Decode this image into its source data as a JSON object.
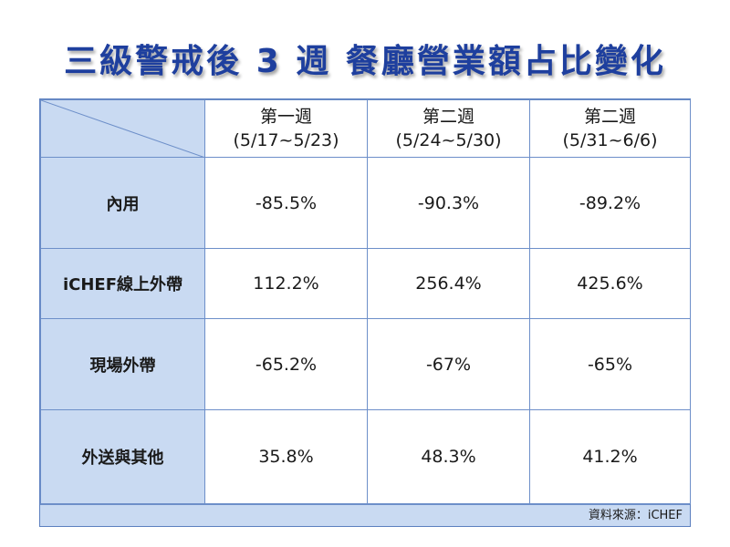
{
  "title": "三級警戒後 3 週 餐廳營業額占比變化",
  "columns": [
    {
      "week": "第一週",
      "range": "(5/17~5/23)"
    },
    {
      "week": "第二週",
      "range": "(5/24~5/30)"
    },
    {
      "week": "第二週",
      "range": "(5/31~6/6)"
    }
  ],
  "rows": [
    {
      "label": "內用",
      "values": [
        "-85.5%",
        "-90.3%",
        "-89.2%"
      ]
    },
    {
      "label": "iCHEF線上外帶",
      "values": [
        "112.2%",
        "256.4%",
        "425.6%"
      ]
    },
    {
      "label": "現場外帶",
      "values": [
        "-65.2%",
        "-67%",
        "-65%"
      ]
    },
    {
      "label": "外送與其他",
      "values": [
        "35.8%",
        "48.3%",
        "41.2%"
      ]
    }
  ],
  "source": "資料來源：iCHEF",
  "colors": {
    "title": "#1e3f9e",
    "header_fill": "#c9daf2",
    "border": "#6d8fc9"
  }
}
